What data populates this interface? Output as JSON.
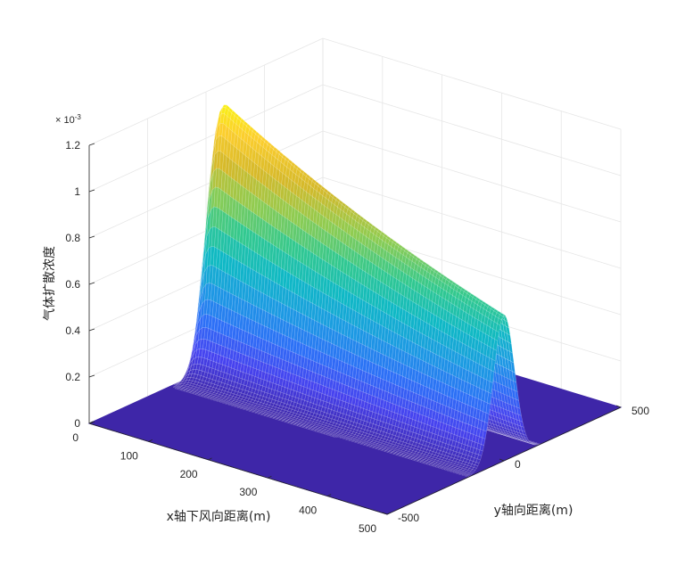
{
  "chart_data": {
    "type": "surface",
    "title": "",
    "xlabel": "x轴下风向距离(m)",
    "ylabel": "y轴向距离(m)",
    "zlabel": "气体扩散浓度",
    "z_exponent_label": "× 10^-3",
    "z_exponent_base": "× 10",
    "z_exponent_power": "-3",
    "xlim": [
      0,
      500
    ],
    "ylim": [
      -500,
      500
    ],
    "zlim": [
      0,
      0.0012
    ],
    "x_ticks": [
      "0",
      "100",
      "200",
      "300",
      "400",
      "500"
    ],
    "y_ticks": [
      "-500",
      "0",
      "500"
    ],
    "z_ticks": [
      "0",
      "0.2",
      "0.4",
      "0.6",
      "0.8",
      "1",
      "1.2"
    ],
    "surface": {
      "peak_value": 0.00117,
      "peak_x": 35,
      "value_at_x500": 0.00063,
      "plume_half_width_sigma_y": 45,
      "plume_start_x": 0
    },
    "colormap": [
      "#3e26a8",
      "#4743f0",
      "#2d70f7",
      "#1c9ae3",
      "#0fb9c5",
      "#33c98f",
      "#8fcc51",
      "#d6b92a",
      "#fcce2e",
      "#f9fb0e"
    ],
    "grid": true
  }
}
